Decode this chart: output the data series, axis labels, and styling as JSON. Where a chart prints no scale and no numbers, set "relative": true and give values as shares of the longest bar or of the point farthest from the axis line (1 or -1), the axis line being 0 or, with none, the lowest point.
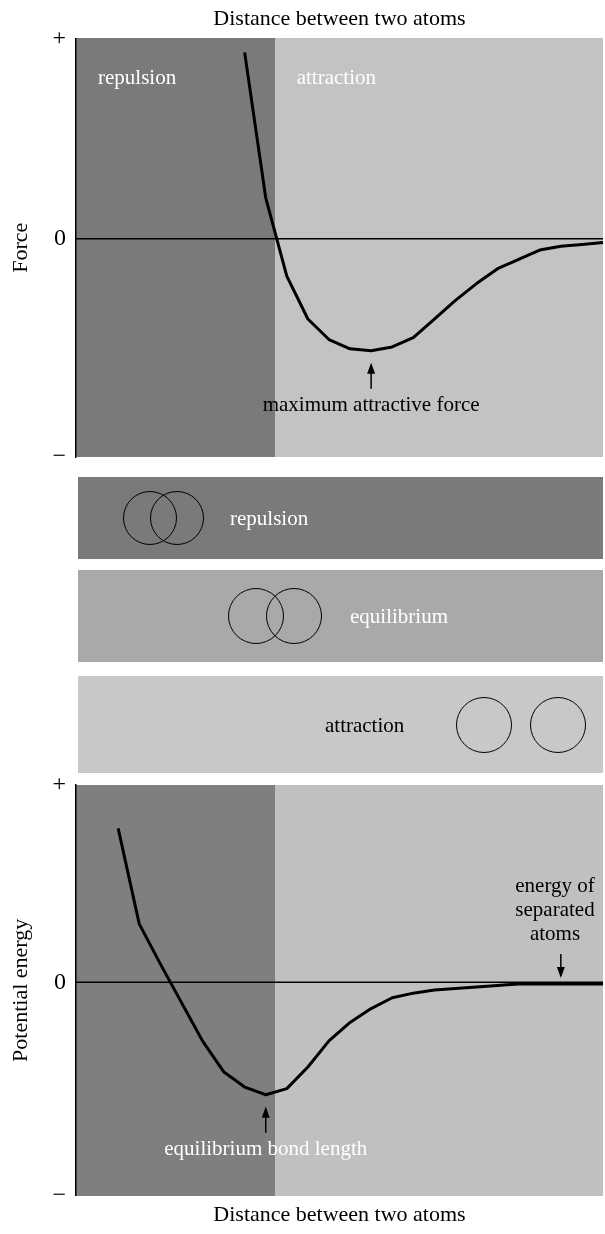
{
  "chart_data": [
    {
      "type": "line",
      "relative": true,
      "xlabel": "Distance between two atoms",
      "ylabel": "Force",
      "categories": [
        null,
        null,
        null,
        null,
        null,
        null,
        null,
        null,
        null,
        null,
        null,
        null,
        null,
        null,
        null,
        null,
        null,
        null,
        null,
        null,
        null,
        null,
        null,
        null,
        null,
        null
      ],
      "legend": false,
      "series": [
        {
          "color": "#000000",
          "values": [
            null,
            null,
            null,
            null,
            null,
            null,
            null,
            null,
            1,
            0.22,
            -0.2,
            -0.43,
            -0.54,
            -0.59,
            -0.6,
            -0.58,
            -0.53,
            -0.43,
            -0.33,
            -0.24,
            -0.16,
            -0.11,
            -0.06,
            -0.04,
            -0.03,
            -0.02
          ]
        }
      ],
      "ref_lines": [
        {
          "axis": "y",
          "value": 0,
          "color": "#000000"
        }
      ],
      "annotations": [
        "repulsion",
        "attraction",
        "+",
        "0",
        "−",
        {
          "text": "maximum attractive force",
          "y": -0.6
        }
      ]
    },
    {
      "type": "other",
      "annotations": [
        "repulsion",
        "equilibrium",
        "attraction"
      ]
    },
    {
      "type": "line",
      "relative": true,
      "xlabel": "Distance between two atoms",
      "ylabel": "Potential energy",
      "categories": [
        null,
        null,
        null,
        null,
        null,
        null,
        null,
        null,
        null,
        null,
        null,
        null,
        null,
        null,
        null,
        null,
        null,
        null,
        null,
        null,
        null,
        null,
        null,
        null,
        null,
        null
      ],
      "legend": false,
      "series": [
        {
          "color": "#000000",
          "values": [
            null,
            null,
            1,
            0.38,
            0.12,
            -0.13,
            -0.38,
            -0.58,
            -0.68,
            -0.73,
            -0.69,
            -0.55,
            -0.38,
            -0.26,
            -0.17,
            -0.1,
            -0.07,
            -0.05,
            -0.04,
            -0.03,
            -0.02,
            -0.01,
            -0.01,
            -0.01,
            -0.01,
            -0.01
          ]
        }
      ],
      "ref_lines": [
        {
          "axis": "y",
          "value": 0,
          "color": "#000000"
        }
      ],
      "annotations": [
        "+",
        "0",
        "−",
        {
          "text": "energy of separated atoms",
          "y": -0.01
        },
        {
          "text": "equilibrium bond length",
          "y": -0.73
        }
      ]
    }
  ]
}
